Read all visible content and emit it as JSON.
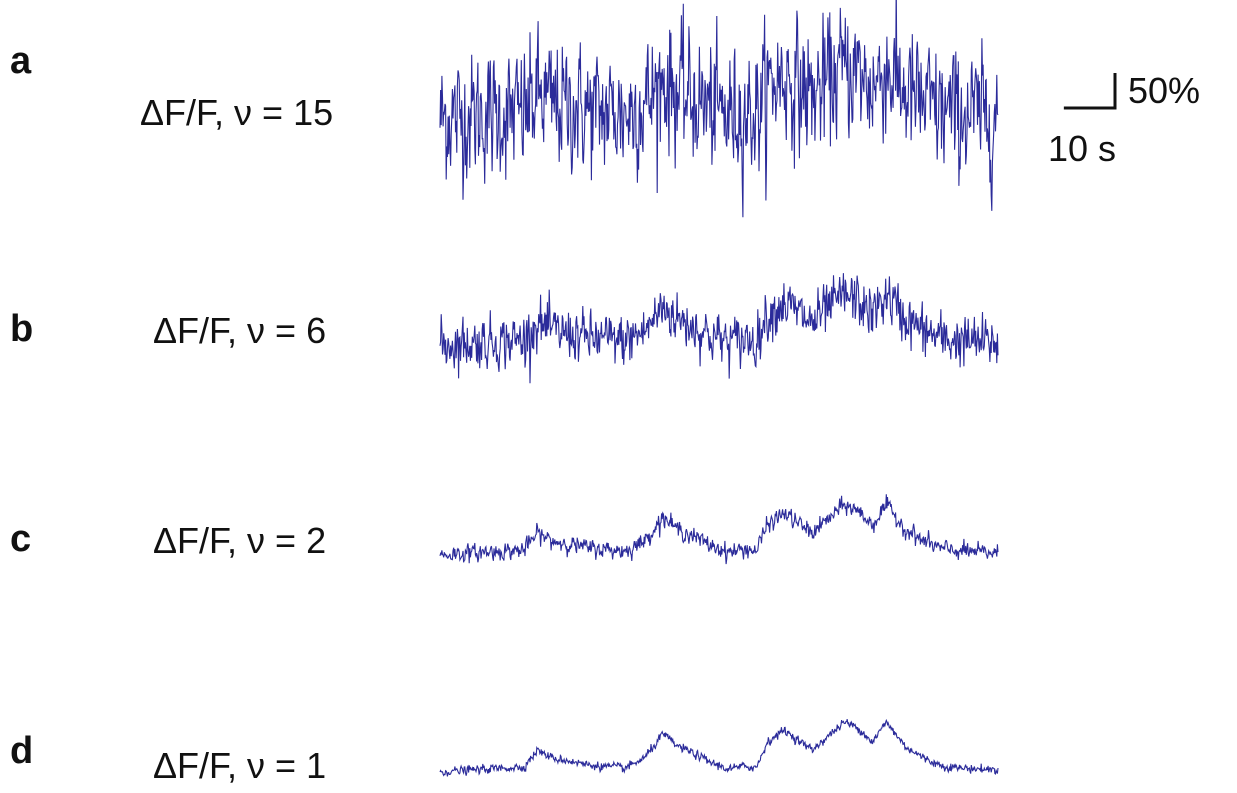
{
  "chart_data": [
    {
      "type": "line",
      "panel_letter": "a",
      "label": "ΔF/F, ν = 15",
      "trace_color": "#2b2b9a",
      "noise_level": 15,
      "x_range_s": [
        0,
        60
      ],
      "y_range_pct": [
        -40,
        140
      ]
    },
    {
      "type": "line",
      "panel_letter": "b",
      "label": "ΔF/F, ν = 6",
      "trace_color": "#2b2b9a",
      "noise_level": 6,
      "x_range_s": [
        0,
        60
      ],
      "y_range_pct": [
        -40,
        140
      ]
    },
    {
      "type": "line",
      "panel_letter": "c",
      "label": "ΔF/F, ν = 2",
      "trace_color": "#2b2b9a",
      "noise_level": 2,
      "x_range_s": [
        0,
        60
      ],
      "y_range_pct": [
        -40,
        140
      ]
    },
    {
      "type": "line",
      "panel_letter": "d",
      "label": "ΔF/F, ν = 1",
      "trace_color": "#2b2b9a",
      "noise_level": 1,
      "x_range_s": [
        0,
        60
      ],
      "y_range_pct": [
        -40,
        140
      ]
    }
  ],
  "scale_bar": {
    "y_label": "50%",
    "x_label": "10 s",
    "y_value_pct": 50,
    "x_value_s": 10
  },
  "underlying_signal": {
    "description_points_s": [
      0,
      5,
      9,
      10.5,
      12,
      14,
      16,
      20,
      22,
      24,
      25.5,
      27,
      29,
      31,
      33,
      34,
      35.2,
      37,
      38.5,
      40,
      42,
      43.5,
      45,
      46.5,
      48,
      50,
      52,
      54,
      56,
      58,
      60
    ],
    "description_points_pct": [
      0,
      3,
      5,
      22,
      14,
      11,
      7,
      4,
      14,
      38,
      26,
      20,
      10,
      3,
      6,
      4,
      30,
      42,
      32,
      22,
      38,
      50,
      44,
      30,
      50,
      26,
      14,
      6,
      4,
      3,
      2
    ]
  }
}
